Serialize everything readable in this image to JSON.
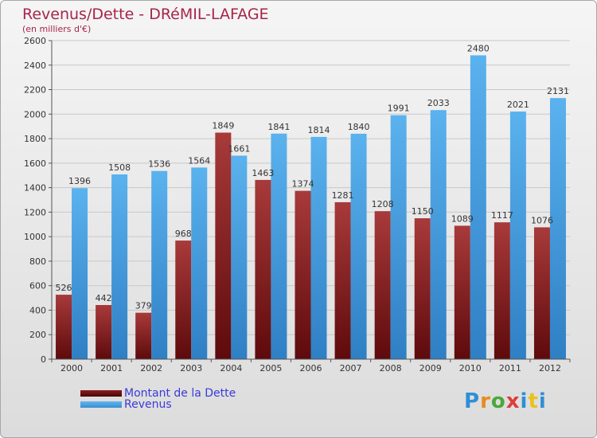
{
  "header": {
    "title": "Revenus/Dette - DRéMIL-LAFAGE",
    "subtitle": "(en milliers d'€)"
  },
  "logo": {
    "text": "Proxiti",
    "colors": [
      "#2e8fd6",
      "#e88a1c",
      "#4aa83a",
      "#e03c3c",
      "#2e8fd6",
      "#e8c21c",
      "#2e8fd6"
    ]
  },
  "colors": {
    "dette": "#7d1416",
    "revenus": "#4fa6e6",
    "title": "#a8244a",
    "legend_text": "#3a3ad9"
  },
  "chart_data": {
    "type": "bar",
    "title": "Revenus/Dette - DRéMIL-LAFAGE",
    "subtitle": "(en milliers d'€)",
    "categories": [
      "2000",
      "2001",
      "2002",
      "2003",
      "2004",
      "2005",
      "2006",
      "2007",
      "2008",
      "2009",
      "2010",
      "2011",
      "2012"
    ],
    "series": [
      {
        "name": "Montant de la Dette",
        "values": [
          526,
          442,
          379,
          968,
          1849,
          1463,
          1374,
          1281,
          1208,
          1150,
          1089,
          1117,
          1076
        ]
      },
      {
        "name": "Revenus",
        "values": [
          1396,
          1508,
          1536,
          1564,
          1661,
          1841,
          1814,
          1840,
          1991,
          2033,
          2480,
          2021,
          2131
        ]
      }
    ],
    "ylim": [
      0,
      2600
    ],
    "yticks": [
      0,
      200,
      400,
      600,
      800,
      1000,
      1200,
      1400,
      1600,
      1800,
      2000,
      2200,
      2400,
      2600
    ],
    "grid": true,
    "legend_position": "bottom-left"
  }
}
